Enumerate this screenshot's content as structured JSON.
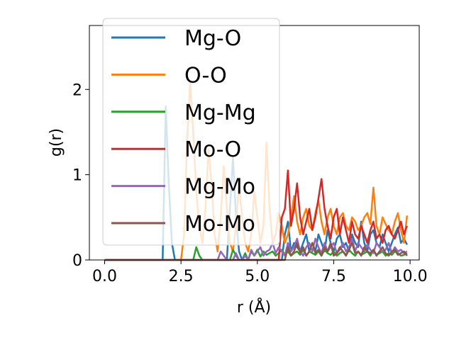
{
  "chart_data": {
    "type": "line",
    "title": "",
    "xlabel": "r (Å)",
    "ylabel": "g(r)",
    "xlim": [
      -0.5,
      10.3
    ],
    "ylim": [
      0,
      2.75
    ],
    "xticks": [
      0.0,
      2.5,
      5.0,
      7.5,
      10.0
    ],
    "xtick_labels": [
      "0.0",
      "2.5",
      "5.0",
      "7.5",
      "10.0"
    ],
    "yticks": [
      0,
      1,
      2
    ],
    "ytick_labels": [
      "0",
      "1",
      "2"
    ],
    "grid": false,
    "legend_position": "top-left",
    "colors": {
      "Mg-O": "#1f77b4",
      "O-O": "#ff7f0e",
      "Mg-Mg": "#2ca02c",
      "Mo-O": "#d62728",
      "Mg-Mo": "#9467bd",
      "Mo-Mo": "#8c564b"
    },
    "x_start": 0.0,
    "x_step": 0.1,
    "series": [
      {
        "name": "Mg-O",
        "values": [
          0,
          0,
          0,
          0,
          0,
          0,
          0,
          0,
          0,
          0,
          0,
          0,
          0,
          0,
          0,
          0,
          0,
          0,
          0,
          0,
          1.8,
          0.9,
          0.2,
          0,
          0,
          0,
          0,
          0,
          0,
          0,
          0,
          0,
          0,
          0,
          0,
          0,
          0,
          0,
          0,
          0,
          0,
          0.6,
          1.2,
          0.5,
          0.1,
          0,
          0,
          0,
          0,
          0,
          0,
          0,
          0,
          0,
          0,
          0,
          0,
          0,
          0,
          0.3,
          0.45,
          0.1,
          0.2,
          0.15,
          0.1,
          0.2,
          0.3,
          0.1,
          0.2,
          0.1,
          0.3,
          0.2,
          0.1,
          0.35,
          0.2,
          0.1,
          0.25,
          0.3,
          0.15,
          0.2,
          0.1,
          0.3,
          0.2,
          0.15,
          0.45,
          0.2,
          0.1,
          0.3,
          0.35,
          0.2,
          0.15,
          0.3,
          0.2,
          0.1,
          0.2,
          0.3,
          0.38,
          0.2,
          0.25,
          0.18
        ]
      },
      {
        "name": "O-O",
        "values": [
          0,
          0,
          0,
          0,
          0,
          0,
          0,
          0,
          0,
          0,
          0,
          0,
          0,
          0,
          0,
          0,
          0,
          0,
          0,
          0,
          0,
          0,
          0,
          0,
          0,
          0,
          0.3,
          1.4,
          2.1,
          1.5,
          0.8,
          0.4,
          0.2,
          0.6,
          1.3,
          0.9,
          0.3,
          0.1,
          0.5,
          1.1,
          0.6,
          0.2,
          0.1,
          0.4,
          0.9,
          0.5,
          0.2,
          0.1,
          0.3,
          0.8,
          0.5,
          0.2,
          0.4,
          1.38,
          0.6,
          0.2,
          0.3,
          0.55,
          0.4,
          0.2,
          0.3,
          0.5,
          0.75,
          0.45,
          0.3,
          0.5,
          0.6,
          0.4,
          0.35,
          0.55,
          0.7,
          0.45,
          0.3,
          0.5,
          0.6,
          0.4,
          0.3,
          0.5,
          0.55,
          0.4,
          0.35,
          0.5,
          0.45,
          0.35,
          0.4,
          0.5,
          0.55,
          0.42,
          0.85,
          0.4,
          0.3,
          0.5,
          0.42,
          0.35,
          0.3,
          0.45,
          0.55,
          0.35,
          0.2,
          0.52
        ]
      },
      {
        "name": "Mg-Mg",
        "values": [
          0,
          0,
          0,
          0,
          0,
          0,
          0,
          0,
          0,
          0,
          0,
          0,
          0,
          0,
          0,
          0,
          0,
          0,
          0,
          0,
          0,
          0,
          0,
          0,
          0,
          0,
          0,
          0,
          0,
          0,
          0.15,
          0.05,
          0,
          0,
          0,
          0,
          0,
          0,
          0,
          0,
          0,
          0,
          0.12,
          0.05,
          0,
          0,
          0.08,
          0,
          0.1,
          0.05,
          0.12,
          0.04,
          0.1,
          0.06,
          0.08,
          0.1,
          0.05,
          0.08,
          0.12,
          0.06,
          0.1,
          0.05,
          0.08,
          0.1,
          0.06,
          0.12,
          0.05,
          0.1,
          0.08,
          0.06,
          0.1,
          0.05,
          0.12,
          0.08,
          0.06,
          0.1,
          0.05,
          0.08,
          0.1,
          0.06,
          0.12,
          0.08,
          0.05,
          0.1,
          0.06,
          0.08,
          0.1,
          0.05,
          0.12,
          0.06,
          0.08,
          0.1,
          0.05,
          0.08,
          0.06,
          0.1,
          0.08,
          0.05,
          0.06,
          0.08
        ]
      },
      {
        "name": "Mo-O",
        "values": [
          0,
          0,
          0,
          0,
          0,
          0,
          0,
          0,
          0,
          0,
          0,
          0,
          0,
          0,
          0,
          0,
          0,
          0,
          0,
          0,
          0,
          0,
          0,
          0,
          0,
          0,
          0,
          0,
          0,
          0,
          0,
          0,
          0,
          0,
          0,
          0,
          0,
          0,
          0,
          0,
          0,
          0,
          0,
          0,
          0,
          0,
          0,
          0,
          0,
          0,
          0,
          0,
          0,
          0,
          0,
          0,
          0,
          0,
          0.5,
          0.6,
          1.05,
          0.4,
          0.6,
          0.9,
          0.5,
          0.3,
          0.45,
          0.6,
          0.35,
          0.5,
          0.72,
          0.95,
          0.6,
          0.4,
          0.25,
          0.5,
          0.6,
          0.3,
          0.5,
          0.35,
          0.2,
          0.45,
          0.3,
          0.25,
          0.4,
          0.3,
          0.2,
          0.35,
          0.45,
          0.25,
          0.3,
          0.2,
          0.35,
          0.4,
          0.3,
          0.25,
          0.35,
          0.45,
          0.3,
          0.4
        ]
      },
      {
        "name": "Mg-Mo",
        "values": [
          0,
          0,
          0,
          0,
          0,
          0,
          0,
          0,
          0,
          0,
          0,
          0,
          0,
          0,
          0,
          0,
          0,
          0,
          0,
          0,
          0,
          0,
          0,
          0,
          0,
          0,
          0,
          0,
          0,
          0,
          0,
          0,
          0,
          0,
          0,
          0,
          0,
          0,
          0.1,
          0.05,
          0,
          0,
          0,
          0.08,
          0,
          0,
          0.05,
          0,
          0.12,
          0.05,
          0.1,
          0.15,
          0.05,
          0.1,
          0.12,
          0.2,
          0.08,
          0.15,
          0.1,
          0.05,
          0.2,
          0.1,
          0.15,
          0.25,
          0.1,
          0.05,
          0.15,
          0.2,
          0.1,
          0.25,
          0.15,
          0.08,
          0.2,
          0.1,
          0.15,
          0.2,
          0.08,
          0.12,
          0.2,
          0.1,
          0.15,
          0.25,
          0.1,
          0.2,
          0.15,
          0.1,
          0.18,
          0.12,
          0.08,
          0.2,
          0.15,
          0.1,
          0.12,
          0.2,
          0.08,
          0.15,
          0.1,
          0.12,
          0.08,
          0.1
        ]
      },
      {
        "name": "Mo-Mo",
        "values": [
          0,
          0,
          0,
          0,
          0,
          0,
          0,
          0,
          0,
          0,
          0,
          0,
          0,
          0,
          0,
          0,
          0,
          0,
          0,
          0,
          0,
          0,
          0,
          0,
          0,
          0,
          0,
          0,
          0,
          0,
          0,
          0,
          0,
          0,
          0,
          0,
          0,
          0,
          0,
          0,
          0,
          0,
          0,
          0,
          0,
          0,
          0,
          0,
          0,
          0,
          0,
          0,
          0,
          0,
          0,
          0,
          0,
          0,
          0,
          0,
          0.15,
          0.05,
          0.1,
          0.2,
          0.08,
          0.15,
          0.05,
          0.1,
          0.2,
          0.08,
          0.12,
          0.05,
          0.15,
          0.1,
          0.2,
          0.05,
          0.08,
          0.15,
          0.1,
          0.05,
          0.12,
          0.2,
          0.08,
          0.1,
          0.05,
          0.15,
          0.1,
          0.08,
          0.12,
          0.05,
          0.1,
          0.15,
          0.08,
          0.05,
          0.1,
          0.12,
          0.06,
          0.08,
          0.1,
          0.05
        ]
      }
    ]
  }
}
